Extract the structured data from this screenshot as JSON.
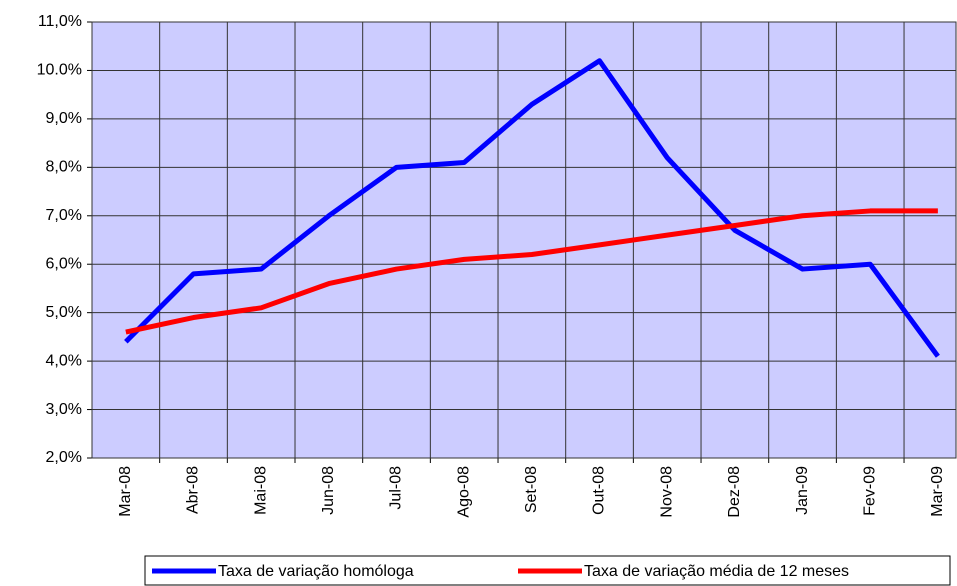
{
  "chart_data": {
    "type": "line",
    "categories": [
      "Mar-08",
      "Abr-08",
      "Mai-08",
      "Jun-08",
      "Jul-08",
      "Ago-08",
      "Set-08",
      "Out-08",
      "Nov-08",
      "Dez-08",
      "Jan-09",
      "Fev-09",
      "Mar-09"
    ],
    "series": [
      {
        "name": "Taxa de variação homóloga",
        "color": "#0000ff",
        "values": [
          4.4,
          5.8,
          5.9,
          7.0,
          8.0,
          8.1,
          9.3,
          10.2,
          8.2,
          6.7,
          5.9,
          6.0,
          4.1
        ]
      },
      {
        "name": "Taxa de variação média de 12 meses",
        "color": "#ff0000",
        "values": [
          4.6,
          4.9,
          5.1,
          5.6,
          5.9,
          6.1,
          6.2,
          6.4,
          6.6,
          6.8,
          7.0,
          7.1,
          7.1
        ]
      }
    ],
    "ylim": [
      2,
      11
    ],
    "yticks": [
      {
        "value": 2,
        "label": "2,0%"
      },
      {
        "value": 3,
        "label": "3,0%"
      },
      {
        "value": 4,
        "label": "4,0%"
      },
      {
        "value": 5,
        "label": "5,0%"
      },
      {
        "value": 6,
        "label": "6,0%"
      },
      {
        "value": 7,
        "label": "7,0%"
      },
      {
        "value": 8,
        "label": "8,0%"
      },
      {
        "value": 9,
        "label": "9,0%"
      },
      {
        "value": 10,
        "label": "10.0%"
      },
      {
        "value": 11,
        "label": "11,0%"
      }
    ],
    "grid": true,
    "background": "#ccccff",
    "legend": "bottom"
  }
}
